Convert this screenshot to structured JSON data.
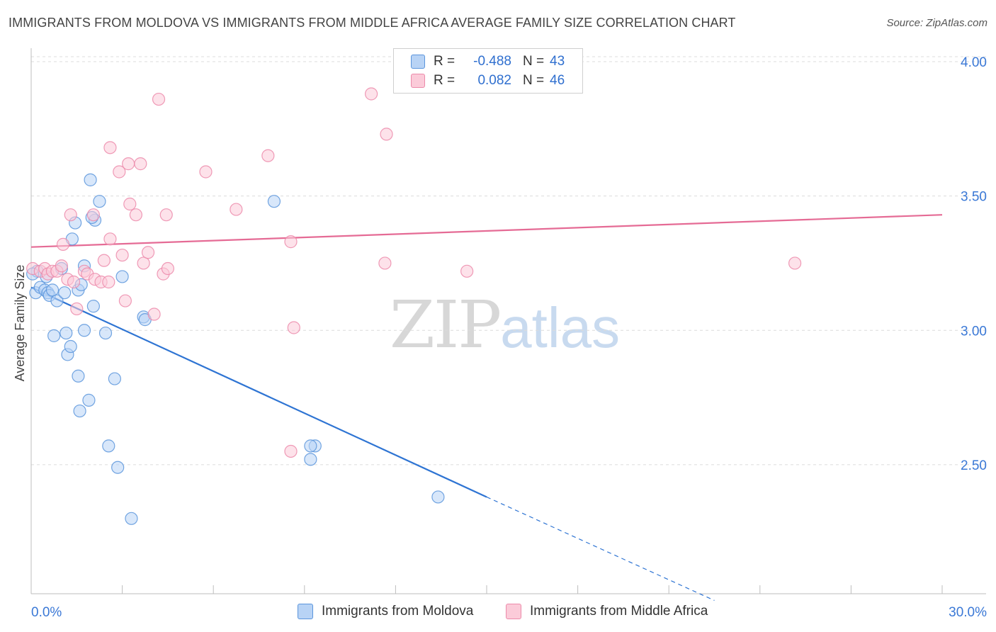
{
  "header": {
    "title": "IMMIGRANTS FROM MOLDOVA VS IMMIGRANTS FROM MIDDLE AFRICA AVERAGE FAMILY SIZE CORRELATION CHART",
    "source": "Source: ZipAtlas.com"
  },
  "watermark": {
    "zip": "ZIP",
    "atlas": "atlas"
  },
  "legend": {
    "r_label": "R =",
    "n_label": "N =",
    "series": [
      {
        "name": "Immigrants from Moldova",
        "r": "-0.488",
        "n": "43",
        "color": "#5b95dc"
      },
      {
        "name": "Immigrants from Middle Africa",
        "r": "0.082",
        "n": "46",
        "color": "#ec8aaa"
      }
    ]
  },
  "chart_data": {
    "type": "scatter",
    "title": "IMMIGRANTS FROM MOLDOVA VS IMMIGRANTS FROM MIDDLE AFRICA AVERAGE FAMILY SIZE CORRELATION CHART",
    "xlabel": "",
    "ylabel": "Average Family Size",
    "xlim": [
      0,
      30
    ],
    "ylim": [
      2.02,
      4.05
    ],
    "x_tick_labels": [
      "0.0%",
      "30.0%"
    ],
    "y_ticks": [
      2.5,
      3.0,
      3.5,
      4.0
    ],
    "y_tick_labels": [
      "2.50",
      "3.00",
      "3.50",
      "4.00"
    ],
    "grid": true,
    "series": [
      {
        "name": "Immigrants from Moldova",
        "color": "#5b95dc",
        "fill": "#b8d3f5",
        "points": [
          [
            0.15,
            3.14
          ],
          [
            0.2,
            3.22
          ],
          [
            0.3,
            3.16
          ],
          [
            0.45,
            3.15
          ],
          [
            0.5,
            3.2
          ],
          [
            0.55,
            3.14
          ],
          [
            0.6,
            3.13
          ],
          [
            0.7,
            3.15
          ],
          [
            0.75,
            2.98
          ],
          [
            0.85,
            3.11
          ],
          [
            1.0,
            3.23
          ],
          [
            1.1,
            3.14
          ],
          [
            1.15,
            2.99
          ],
          [
            1.2,
            2.91
          ],
          [
            1.3,
            2.94
          ],
          [
            1.35,
            3.34
          ],
          [
            1.45,
            3.4
          ],
          [
            1.55,
            2.83
          ],
          [
            1.55,
            3.15
          ],
          [
            1.6,
            2.7
          ],
          [
            1.65,
            3.17
          ],
          [
            1.75,
            3.24
          ],
          [
            1.75,
            3.0
          ],
          [
            1.9,
            2.74
          ],
          [
            1.95,
            3.56
          ],
          [
            2.1,
            3.41
          ],
          [
            2.0,
            3.42
          ],
          [
            2.05,
            3.09
          ],
          [
            2.25,
            3.48
          ],
          [
            2.45,
            2.99
          ],
          [
            2.55,
            2.57
          ],
          [
            2.75,
            2.82
          ],
          [
            2.85,
            2.49
          ],
          [
            3.0,
            3.2
          ],
          [
            3.3,
            2.3
          ],
          [
            3.7,
            3.05
          ],
          [
            3.75,
            3.04
          ],
          [
            8.0,
            3.48
          ],
          [
            9.35,
            2.57
          ],
          [
            9.2,
            2.57
          ],
          [
            9.2,
            2.52
          ],
          [
            13.4,
            2.38
          ],
          [
            0.05,
            3.21
          ]
        ],
        "trend": {
          "x0": 0.0,
          "y0": 3.16,
          "x1": 15.0,
          "y1": 2.38,
          "dashed_to_x": 22.5,
          "dashed_to_y": 1.995
        }
      },
      {
        "name": "Immigrants from Middle Africa",
        "color": "#ec8aaa",
        "fill": "#fbcbd9",
        "points": [
          [
            0.05,
            3.23
          ],
          [
            0.3,
            3.22
          ],
          [
            0.45,
            3.23
          ],
          [
            0.55,
            3.21
          ],
          [
            0.7,
            3.22
          ],
          [
            0.85,
            3.22
          ],
          [
            1.0,
            3.24
          ],
          [
            1.05,
            3.32
          ],
          [
            1.2,
            3.19
          ],
          [
            1.3,
            3.43
          ],
          [
            1.4,
            3.18
          ],
          [
            1.5,
            3.08
          ],
          [
            1.75,
            3.22
          ],
          [
            1.85,
            3.21
          ],
          [
            2.05,
            3.43
          ],
          [
            2.1,
            3.19
          ],
          [
            2.3,
            3.18
          ],
          [
            2.4,
            3.26
          ],
          [
            2.55,
            3.18
          ],
          [
            2.6,
            3.34
          ],
          [
            2.6,
            3.68
          ],
          [
            2.9,
            3.59
          ],
          [
            3.0,
            3.28
          ],
          [
            3.1,
            3.11
          ],
          [
            3.2,
            3.62
          ],
          [
            3.25,
            3.47
          ],
          [
            3.45,
            3.43
          ],
          [
            3.6,
            3.62
          ],
          [
            3.7,
            3.25
          ],
          [
            3.85,
            3.29
          ],
          [
            4.05,
            3.06
          ],
          [
            4.35,
            3.21
          ],
          [
            4.45,
            3.43
          ],
          [
            4.5,
            3.23
          ],
          [
            4.2,
            3.86
          ],
          [
            5.75,
            3.59
          ],
          [
            6.75,
            3.45
          ],
          [
            7.8,
            3.65
          ],
          [
            8.55,
            3.33
          ],
          [
            8.65,
            3.01
          ],
          [
            8.55,
            2.55
          ],
          [
            11.2,
            3.88
          ],
          [
            11.65,
            3.25
          ],
          [
            11.7,
            3.73
          ],
          [
            14.35,
            3.22
          ],
          [
            25.15,
            3.25
          ]
        ],
        "trend": {
          "x0": 0.0,
          "y0": 3.31,
          "x1": 30.0,
          "y1": 3.43
        }
      }
    ]
  }
}
